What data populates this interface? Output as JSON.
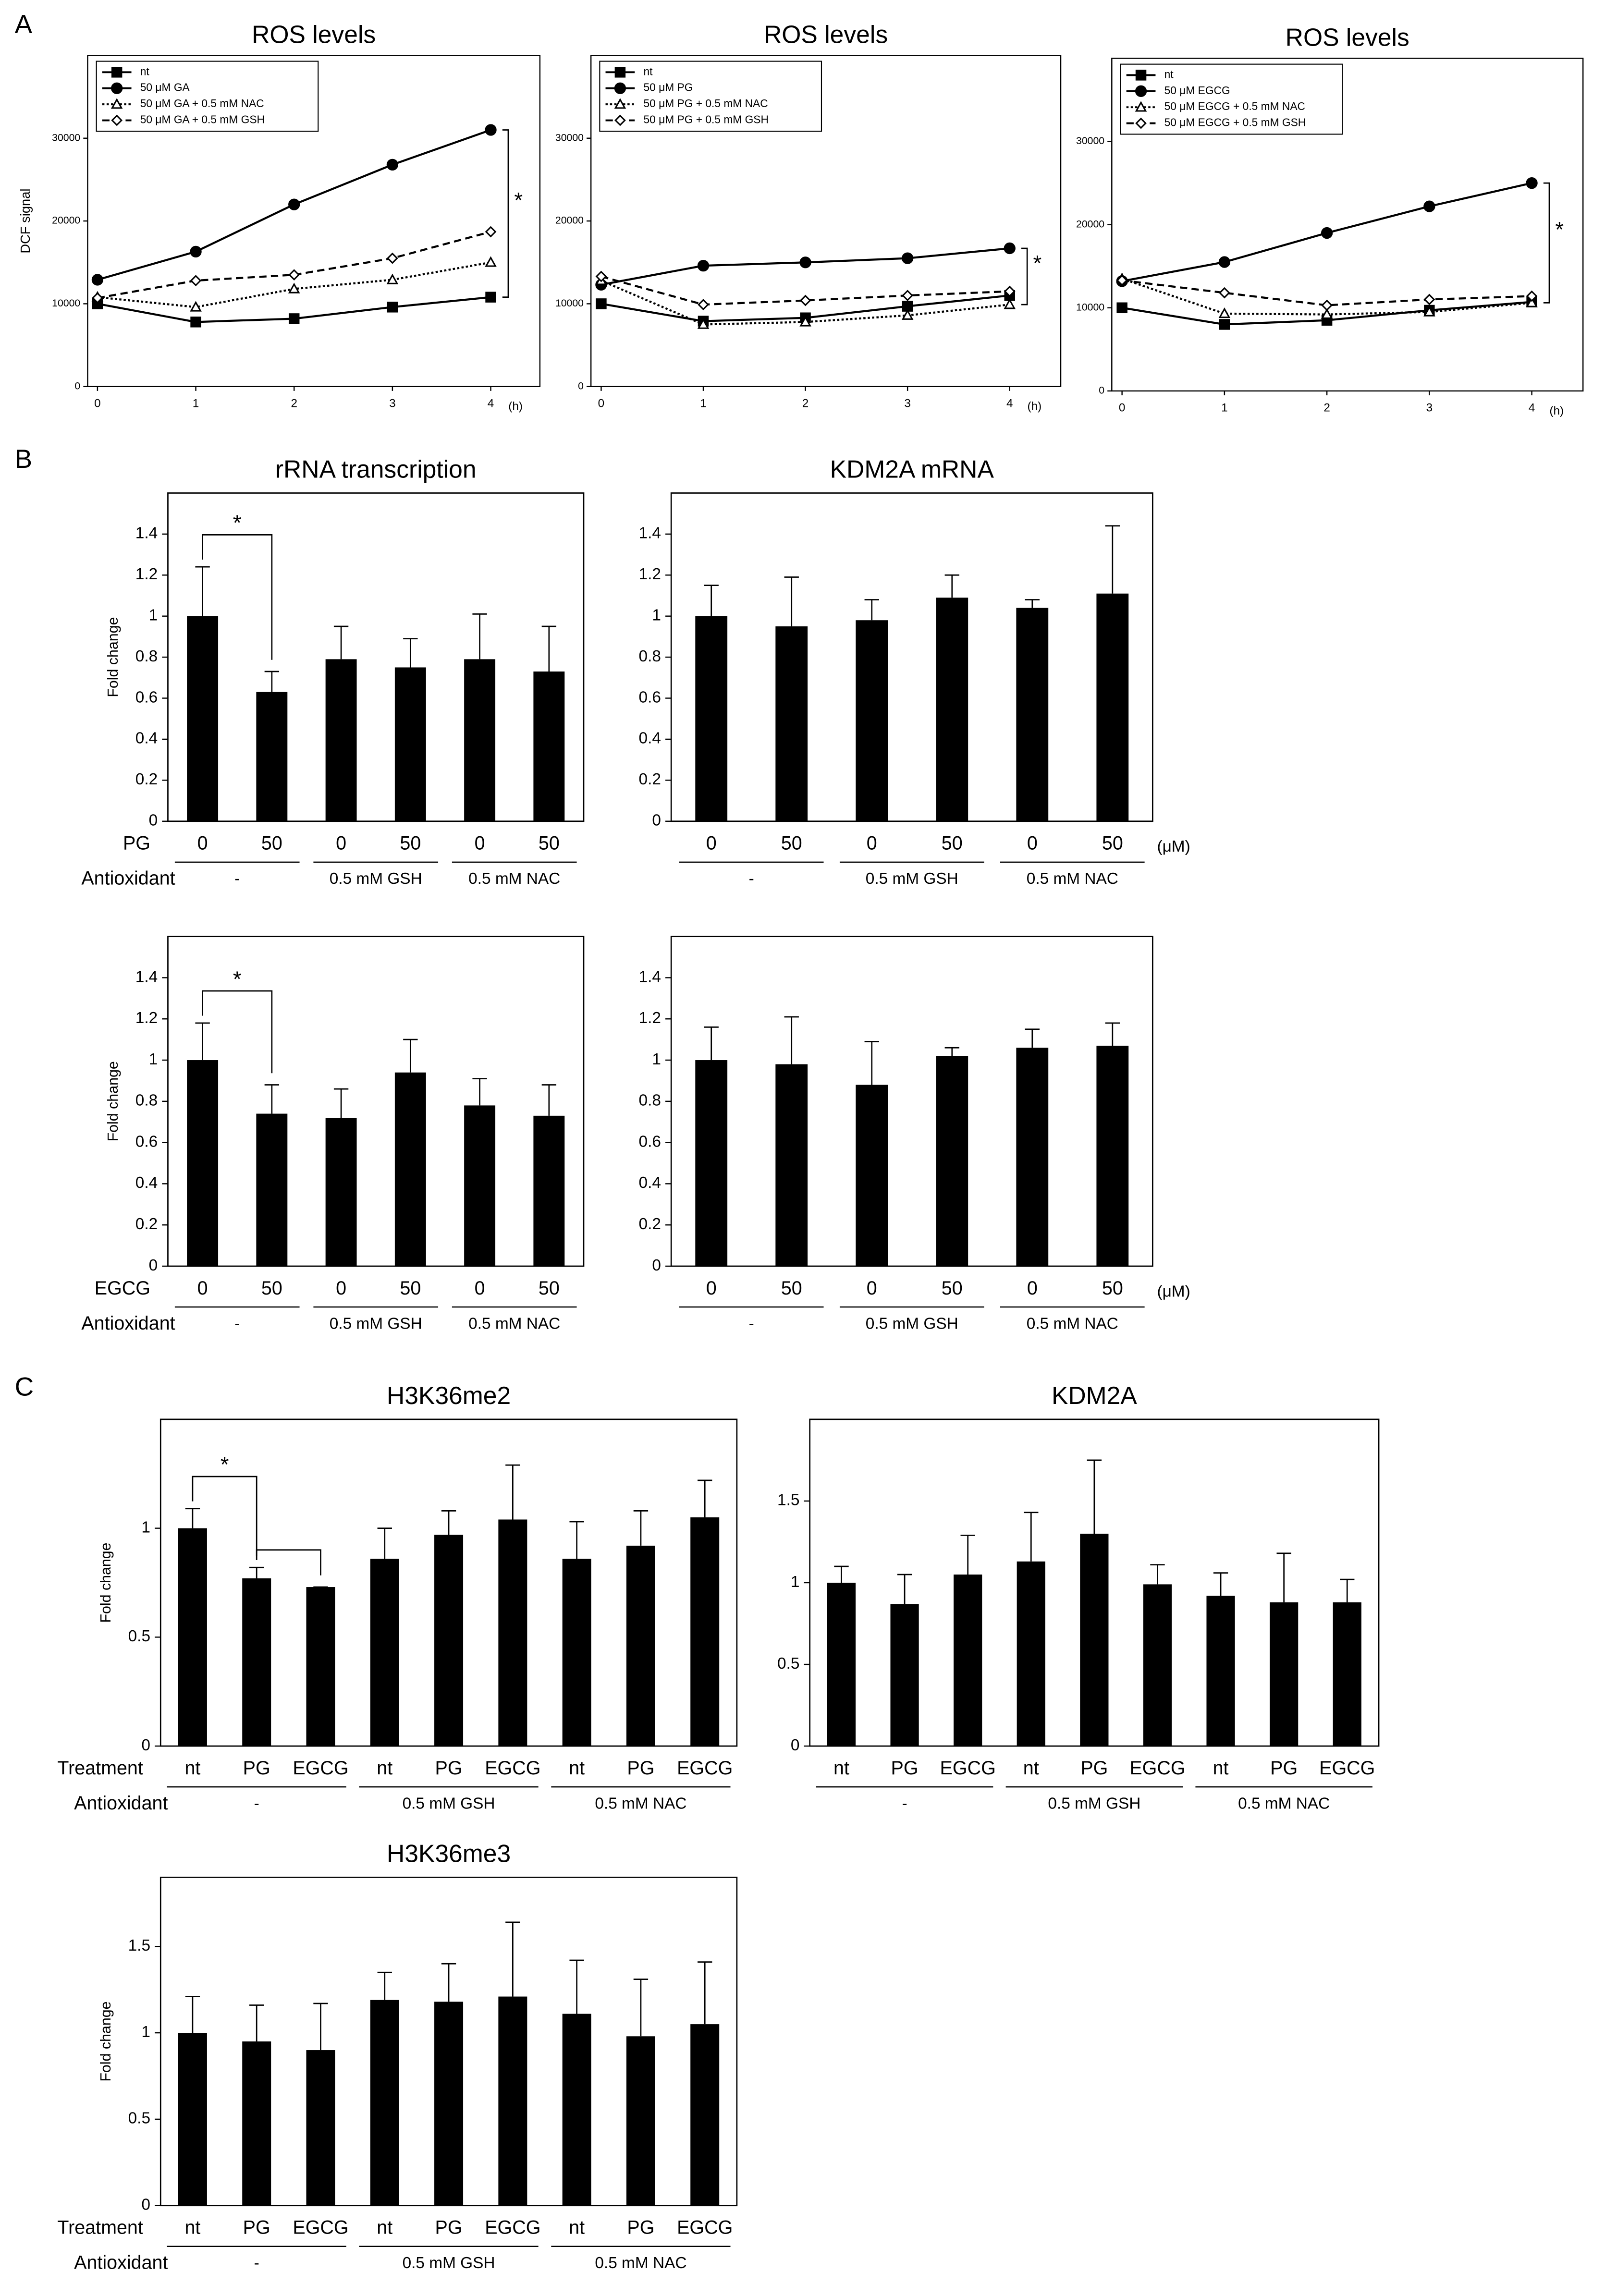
{
  "panels": [
    "A",
    "B",
    "C"
  ],
  "chart_data": [
    {
      "type": "line",
      "title": "ROS levels",
      "ylabel": "DCF signal",
      "x": [
        0,
        1,
        2,
        3,
        4
      ],
      "xlim": [
        -0.1,
        4.5
      ],
      "xticks": [
        0,
        1,
        2,
        3,
        4
      ],
      "x_unit": "(h)",
      "ylim": [
        0,
        40000
      ],
      "yticks": [
        0,
        10000,
        20000,
        30000
      ],
      "annotation": "*",
      "series": [
        {
          "name": "nt",
          "color": "#000000",
          "marker": "square",
          "dash": "solid",
          "values": [
            10000,
            7800,
            8200,
            9600,
            10800
          ]
        },
        {
          "name": "50 μM GA",
          "color": "#000000",
          "marker": "circle",
          "dash": "solid",
          "values": [
            12900,
            16300,
            22000,
            26800,
            31000
          ]
        },
        {
          "name": "50 μM GA + 0.5 mM NAC",
          "color": "#000000",
          "marker": "triangle",
          "dash": "dotted",
          "values": [
            10800,
            9600,
            11800,
            12900,
            15000
          ]
        },
        {
          "name": "50 μM GA + 0.5 mM GSH",
          "color": "#000000",
          "marker": "diamond",
          "dash": "dashed",
          "values": [
            10700,
            12800,
            13500,
            15500,
            18700
          ]
        }
      ]
    },
    {
      "type": "line",
      "title": "ROS levels",
      "x": [
        0,
        1,
        2,
        3,
        4
      ],
      "xlim": [
        -0.1,
        4.5
      ],
      "xticks": [
        0,
        1,
        2,
        3,
        4
      ],
      "x_unit": "(h)",
      "ylim": [
        0,
        40000
      ],
      "yticks": [
        0,
        10000,
        20000,
        30000
      ],
      "annotation": "*",
      "series": [
        {
          "name": "nt",
          "color": "#000000",
          "marker": "square",
          "dash": "solid",
          "values": [
            10000,
            7900,
            8300,
            9700,
            11000
          ]
        },
        {
          "name": "50 μM PG",
          "color": "#000000",
          "marker": "circle",
          "dash": "solid",
          "values": [
            12300,
            14600,
            15000,
            15500,
            16700
          ]
        },
        {
          "name": "50 μM PG + 0.5 mM NAC",
          "color": "#000000",
          "marker": "triangle",
          "dash": "dotted",
          "values": [
            12800,
            7500,
            7800,
            8600,
            9900
          ]
        },
        {
          "name": "50 μM PG + 0.5 mM GSH",
          "color": "#000000",
          "marker": "diamond",
          "dash": "dashed",
          "values": [
            13300,
            9900,
            10400,
            11000,
            11500
          ]
        }
      ]
    },
    {
      "type": "line",
      "title": "ROS levels",
      "x": [
        0,
        1,
        2,
        3,
        4
      ],
      "xlim": [
        -0.1,
        4.5
      ],
      "xticks": [
        0,
        1,
        2,
        3,
        4
      ],
      "x_unit": "(h)",
      "ylim": [
        0,
        40000
      ],
      "yticks": [
        0,
        10000,
        20000,
        30000
      ],
      "annotation": "*",
      "series": [
        {
          "name": "nt",
          "color": "#000000",
          "marker": "square",
          "dash": "solid",
          "values": [
            10000,
            8000,
            8500,
            9700,
            10700
          ]
        },
        {
          "name": "50 μM EGCG",
          "color": "#000000",
          "marker": "circle",
          "dash": "solid",
          "values": [
            13200,
            15500,
            19000,
            22200,
            25000
          ]
        },
        {
          "name": "50 μM EGCG + 0.5 mM NAC",
          "color": "#000000",
          "marker": "triangle",
          "dash": "dotted",
          "values": [
            13500,
            9300,
            9200,
            9500,
            10600
          ]
        },
        {
          "name": "50 μM EGCG + 0.5 mM GSH",
          "color": "#000000",
          "marker": "diamond",
          "dash": "dashed",
          "values": [
            13300,
            11800,
            10300,
            11000,
            11400
          ]
        }
      ]
    },
    {
      "type": "bar",
      "title": "rRNA transcription",
      "ylabel": "Fold change",
      "row_label": "PG",
      "group_label": "Antioxidant",
      "categories": [
        "0",
        "50",
        "0",
        "50",
        "0",
        "50"
      ],
      "groups": [
        "-",
        "0.5 mM GSH",
        "0.5 mM NAC"
      ],
      "values": [
        1.0,
        0.63,
        0.79,
        0.75,
        0.79,
        0.73
      ],
      "errors": [
        0.24,
        0.1,
        0.16,
        0.14,
        0.22,
        0.22
      ],
      "color": "#000000",
      "ylim": [
        0,
        1.6
      ],
      "yticks": [
        0,
        0.2,
        0.4,
        0.6,
        0.8,
        1,
        1.2,
        1.4
      ],
      "annotation": "*"
    },
    {
      "type": "bar",
      "title": "KDM2A mRNA",
      "unit": "(μM)",
      "categories": [
        "0",
        "50",
        "0",
        "50",
        "0",
        "50"
      ],
      "groups": [
        "-",
        "0.5 mM GSH",
        "0.5 mM NAC"
      ],
      "values": [
        1.0,
        0.95,
        0.98,
        1.09,
        1.04,
        1.11
      ],
      "errors": [
        0.15,
        0.24,
        0.1,
        0.11,
        0.04,
        0.33
      ],
      "color": "#000000",
      "ylim": [
        0,
        1.6
      ],
      "yticks": [
        0,
        0.2,
        0.4,
        0.6,
        0.8,
        1,
        1.2,
        1.4
      ]
    },
    {
      "type": "bar",
      "ylabel": "Fold change",
      "row_label": "EGCG",
      "group_label": "Antioxidant",
      "categories": [
        "0",
        "50",
        "0",
        "50",
        "0",
        "50"
      ],
      "groups": [
        "-",
        "0.5 mM GSH",
        "0.5 mM NAC"
      ],
      "values": [
        1.0,
        0.74,
        0.72,
        0.94,
        0.78,
        0.73
      ],
      "errors": [
        0.18,
        0.14,
        0.14,
        0.16,
        0.13,
        0.15
      ],
      "color": "#000000",
      "ylim": [
        0,
        1.6
      ],
      "yticks": [
        0,
        0.2,
        0.4,
        0.6,
        0.8,
        1,
        1.2,
        1.4
      ],
      "annotation": "*"
    },
    {
      "type": "bar",
      "unit": "(μM)",
      "categories": [
        "0",
        "50",
        "0",
        "50",
        "0",
        "50"
      ],
      "groups": [
        "-",
        "0.5 mM GSH",
        "0.5 mM NAC"
      ],
      "values": [
        1.0,
        0.98,
        0.88,
        1.02,
        1.06,
        1.07
      ],
      "errors": [
        0.16,
        0.23,
        0.21,
        0.04,
        0.09,
        0.11
      ],
      "color": "#000000",
      "ylim": [
        0,
        1.6
      ],
      "yticks": [
        0,
        0.2,
        0.4,
        0.6,
        0.8,
        1,
        1.2,
        1.4
      ]
    },
    {
      "type": "bar",
      "title": "H3K36me2",
      "ylabel": "Fold change",
      "row_label": "Treatment",
      "group_label": "Antioxidant",
      "categories": [
        "nt",
        "PG",
        "EGCG",
        "nt",
        "PG",
        "EGCG",
        "nt",
        "PG",
        "EGCG"
      ],
      "groups": [
        "-",
        "0.5 mM GSH",
        "0.5 mM NAC"
      ],
      "values": [
        1.0,
        0.77,
        0.73,
        0.86,
        0.97,
        1.04,
        0.86,
        0.92,
        1.05
      ],
      "errors": [
        0.09,
        0.05,
        0,
        0.14,
        0.11,
        0.25,
        0.17,
        0.16,
        0.17
      ],
      "color": "#000000",
      "ylim": [
        0,
        1.5
      ],
      "yticks": [
        0,
        0.5,
        1
      ],
      "annotation": "*"
    },
    {
      "type": "bar",
      "title": "KDM2A",
      "categories": [
        "nt",
        "PG",
        "EGCG",
        "nt",
        "PG",
        "EGCG",
        "nt",
        "PG",
        "EGCG"
      ],
      "groups": [
        "-",
        "0.5 mM GSH",
        "0.5 mM NAC"
      ],
      "values": [
        1.0,
        0.87,
        1.05,
        1.13,
        1.3,
        0.99,
        0.92,
        0.88,
        0.88
      ],
      "errors": [
        0.1,
        0.18,
        0.24,
        0.3,
        0.45,
        0.12,
        0.14,
        0.3,
        0.14
      ],
      "color": "#000000",
      "ylim": [
        0,
        2
      ],
      "yticks": [
        0,
        0.5,
        1,
        1.5
      ]
    },
    {
      "type": "bar",
      "title": "H3K36me3",
      "ylabel": "Fold change",
      "row_label": "Treatment",
      "group_label": "Antioxidant",
      "categories": [
        "nt",
        "PG",
        "EGCG",
        "nt",
        "PG",
        "EGCG",
        "nt",
        "PG",
        "EGCG"
      ],
      "groups": [
        "-",
        "0.5 mM GSH",
        "0.5 mM NAC"
      ],
      "values": [
        1.0,
        0.95,
        0.9,
        1.19,
        1.18,
        1.21,
        1.11,
        0.98,
        1.05
      ],
      "errors": [
        0.21,
        0.21,
        0.27,
        0.16,
        0.22,
        0.43,
        0.31,
        0.33,
        0.36
      ],
      "color": "#000000",
      "ylim": [
        0,
        1.9
      ],
      "yticks": [
        0,
        0.5,
        1,
        1.5
      ]
    }
  ]
}
